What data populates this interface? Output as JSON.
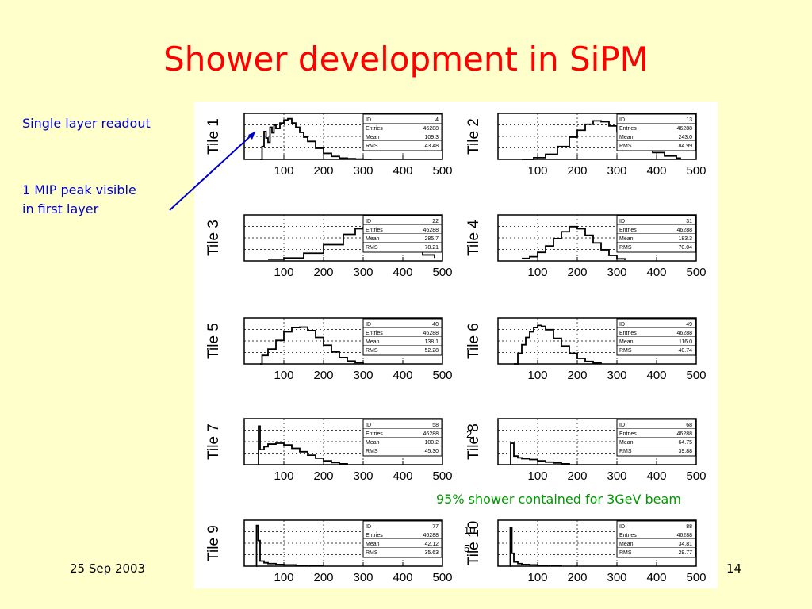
{
  "slide": {
    "title": "Shower development in SiPM",
    "notes": {
      "readout": "Single layer readout",
      "mip_line1": "1 MIP peak visible",
      "mip_line2": "in first layer",
      "containment": "95% shower contained for 3GeV beam"
    },
    "date": "25 Sep 2003",
    "page_number": "14",
    "stray_ticks": [
      "2",
      "10",
      "5"
    ]
  },
  "colors": {
    "background": "#ffffcc",
    "title": "#ff0000",
    "note_blue": "#0000cc",
    "note_green": "#009900",
    "arrow": "#0000cc"
  },
  "chart_data": [
    {
      "type": "line",
      "panel": "Tile 1",
      "x_ticks": [
        100,
        200,
        300,
        400,
        500
      ],
      "xlim": [
        0,
        500
      ],
      "stat_labels": [
        "ID",
        "Entries",
        "Mean",
        "RMS"
      ],
      "stats": [
        "4",
        "46288",
        "109.3",
        "43.48"
      ],
      "x": [
        40,
        45,
        50,
        55,
        60,
        65,
        70,
        75,
        80,
        90,
        100,
        110,
        120,
        130,
        140,
        150,
        160,
        180,
        200,
        220,
        240,
        260,
        280,
        300,
        320
      ],
      "y": [
        0,
        0.3,
        0.65,
        0.5,
        0.4,
        0.75,
        0.62,
        0.8,
        0.72,
        0.85,
        0.92,
        0.95,
        0.85,
        0.75,
        0.63,
        0.52,
        0.42,
        0.26,
        0.14,
        0.07,
        0.03,
        0.015,
        0.006,
        0.002,
        0
      ]
    },
    {
      "type": "line",
      "panel": "Tile 2",
      "x_ticks": [
        100,
        200,
        300,
        400,
        500
      ],
      "xlim": [
        0,
        500
      ],
      "stat_labels": [
        "ID",
        "Entries",
        "Mean",
        "RMS"
      ],
      "stats": [
        "13",
        "46288",
        "243.0",
        "84.99"
      ],
      "x": [
        60,
        90,
        120,
        150,
        180,
        200,
        220,
        240,
        260,
        280,
        300,
        330,
        360,
        390,
        420,
        450,
        460
      ],
      "y": [
        0,
        0.04,
        0.12,
        0.3,
        0.52,
        0.68,
        0.82,
        0.9,
        0.88,
        0.78,
        0.64,
        0.45,
        0.28,
        0.16,
        0.08,
        0.03,
        0.01
      ]
    },
    {
      "type": "line",
      "panel": "Tile 3",
      "x_ticks": [
        100,
        200,
        300,
        400,
        500
      ],
      "xlim": [
        0,
        500
      ],
      "stat_labels": [
        "ID",
        "Entries",
        "Mean",
        "RMS"
      ],
      "stats": [
        "22",
        "46288",
        "285.7",
        "78.21"
      ],
      "x": [
        60,
        100,
        150,
        200,
        250,
        280,
        300,
        320,
        350,
        380,
        400,
        420,
        450,
        480
      ],
      "y": [
        0.04,
        0.07,
        0.18,
        0.38,
        0.62,
        0.75,
        0.78,
        0.74,
        0.6,
        0.45,
        0.34,
        0.25,
        0.14,
        0.07
      ]
    },
    {
      "type": "line",
      "panel": "Tile 4",
      "x_ticks": [
        100,
        200,
        300,
        400,
        500
      ],
      "xlim": [
        0,
        500
      ],
      "stat_labels": [
        "ID",
        "Entries",
        "Mean",
        "RMS"
      ],
      "stats": [
        "31",
        "46288",
        "183.3",
        "70.04"
      ],
      "x": [
        60,
        80,
        100,
        120,
        140,
        160,
        180,
        200,
        220,
        240,
        260,
        280,
        300,
        320
      ],
      "y": [
        0.06,
        0.1,
        0.2,
        0.35,
        0.52,
        0.68,
        0.8,
        0.75,
        0.6,
        0.42,
        0.26,
        0.13,
        0.05,
        0.02
      ]
    },
    {
      "type": "line",
      "panel": "Tile 5",
      "x_ticks": [
        100,
        200,
        300,
        400,
        500
      ],
      "xlim": [
        0,
        500
      ],
      "stat_labels": [
        "ID",
        "Entries",
        "Mean",
        "RMS"
      ],
      "stats": [
        "40",
        "46288",
        "138.1",
        "52.28"
      ],
      "x": [
        40,
        45,
        60,
        80,
        100,
        120,
        140,
        160,
        180,
        200,
        220,
        240,
        260,
        280,
        300
      ],
      "y": [
        0,
        0.2,
        0.35,
        0.55,
        0.75,
        0.85,
        0.86,
        0.78,
        0.62,
        0.44,
        0.28,
        0.15,
        0.07,
        0.03,
        0.01
      ]
    },
    {
      "type": "line",
      "panel": "Tile 6",
      "x_ticks": [
        100,
        200,
        300,
        400,
        500
      ],
      "xlim": [
        0,
        500
      ],
      "stat_labels": [
        "ID",
        "Entries",
        "Mean",
        "RMS"
      ],
      "stats": [
        "49",
        "46288",
        "116.0",
        "40.74"
      ],
      "x": [
        40,
        50,
        60,
        70,
        80,
        90,
        100,
        110,
        120,
        140,
        160,
        180,
        200,
        220,
        240,
        260
      ],
      "y": [
        0,
        0.25,
        0.45,
        0.62,
        0.75,
        0.85,
        0.9,
        0.88,
        0.8,
        0.6,
        0.42,
        0.25,
        0.13,
        0.06,
        0.02,
        0
      ]
    },
    {
      "type": "line",
      "panel": "Tile 7",
      "x_ticks": [
        100,
        200,
        300,
        400,
        500
      ],
      "xlim": [
        0,
        500
      ],
      "stat_labels": [
        "ID",
        "Entries",
        "Mean",
        "RMS"
      ],
      "stats": [
        "58",
        "46288",
        "100.2",
        "45.30"
      ],
      "x": [
        35,
        36,
        40,
        50,
        60,
        80,
        100,
        120,
        140,
        160,
        180,
        200,
        220,
        240,
        260
      ],
      "y": [
        0,
        0.9,
        0.35,
        0.42,
        0.48,
        0.5,
        0.46,
        0.38,
        0.3,
        0.22,
        0.15,
        0.09,
        0.05,
        0.02,
        0.01
      ]
    },
    {
      "type": "line",
      "panel": "Tile 8",
      "x_ticks": [
        100,
        200,
        300,
        400,
        500
      ],
      "xlim": [
        0,
        500
      ],
      "stat_labels": [
        "ID",
        "Entries",
        "Mean",
        "RMS"
      ],
      "stats": [
        "68",
        "46288",
        "64.75",
        "39.88"
      ],
      "x": [
        30,
        32,
        40,
        50,
        60,
        80,
        100,
        120,
        140,
        160,
        180
      ],
      "y": [
        0,
        0.5,
        0.2,
        0.16,
        0.14,
        0.12,
        0.09,
        0.06,
        0.04,
        0.02,
        0.01
      ]
    },
    {
      "type": "line",
      "panel": "Tile 9",
      "x_ticks": [
        100,
        200,
        300,
        400,
        500
      ],
      "xlim": [
        0,
        500
      ],
      "stat_labels": [
        "ID",
        "Entries",
        "Mean",
        "RMS"
      ],
      "stats": [
        "77",
        "46288",
        "42.12",
        "35.63"
      ],
      "x": [
        30,
        31,
        35,
        40,
        50,
        60,
        80,
        100,
        130,
        160,
        200
      ],
      "y": [
        0,
        0.95,
        0.6,
        0.12,
        0.08,
        0.06,
        0.04,
        0.03,
        0.02,
        0.01,
        0
      ]
    },
    {
      "type": "line",
      "panel": "Tile 10",
      "x_ticks": [
        100,
        200,
        300,
        400,
        500
      ],
      "xlim": [
        0,
        500
      ],
      "stat_labels": [
        "ID",
        "Entries",
        "Mean",
        "RMS"
      ],
      "stats": [
        "88",
        "46288",
        "34.81",
        "29.77"
      ],
      "x": [
        30,
        31,
        35,
        40,
        50,
        60,
        80,
        100,
        130,
        160
      ],
      "y": [
        0,
        0.9,
        0.3,
        0.1,
        0.06,
        0.04,
        0.03,
        0.02,
        0.01,
        0
      ]
    }
  ]
}
